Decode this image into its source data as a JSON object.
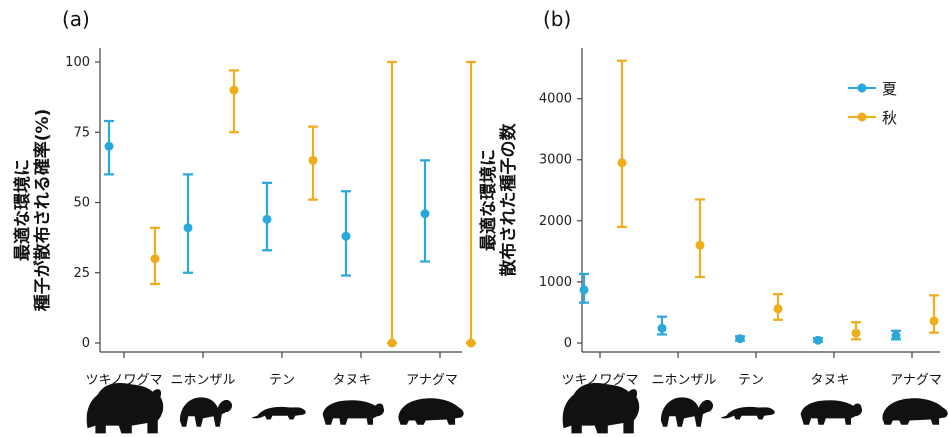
{
  "colors": {
    "summer": "#29a8de",
    "autumn": "#f0ad1a",
    "axis": "#444444",
    "silhouette": "#111111"
  },
  "legend": [
    {
      "key": "summer",
      "label": "夏"
    },
    {
      "key": "autumn",
      "label": "秋"
    }
  ],
  "animal_icons": [
    "bear-silhouette-icon",
    "monkey-silhouette-icon",
    "marten-silhouette-icon",
    "raccoon-dog-silhouette-icon",
    "badger-silhouette-icon"
  ],
  "chart_data": [
    {
      "type": "errorbar",
      "panel_label": "(a)",
      "ylabel": [
        "最適な環境に",
        "種子が散布される確率(%)"
      ],
      "yticks": [
        "0",
        "25",
        "50",
        "75",
        "100"
      ],
      "ylim": [
        0,
        100
      ],
      "categories": [
        "ツキノワグマ",
        "ニホンザル",
        "テン",
        "タヌキ",
        "アナグマ"
      ],
      "series": [
        {
          "name": "夏",
          "key": "summer",
          "values": [
            70,
            41,
            44,
            38,
            46
          ],
          "lower": [
            60,
            25,
            33,
            24,
            29
          ],
          "upper": [
            79,
            60,
            57,
            54,
            65
          ]
        },
        {
          "name": "秋",
          "key": "autumn",
          "values": [
            30,
            90,
            65,
            0,
            0
          ],
          "lower": [
            21,
            75,
            51,
            0,
            0
          ],
          "upper": [
            41,
            97,
            77,
            100,
            100
          ]
        }
      ]
    },
    {
      "type": "errorbar",
      "panel_label": "(b)",
      "ylabel": [
        "最適な環境に",
        "散布された種子の数"
      ],
      "yticks": [
        "0",
        "1000",
        "2000",
        "3000",
        "4000"
      ],
      "ylim": [
        0,
        4600
      ],
      "categories": [
        "ツキノワグマ",
        "ニホンザル",
        "テン",
        "タヌキ",
        "アナグマ"
      ],
      "series": [
        {
          "name": "夏",
          "key": "summer",
          "values": [
            870,
            240,
            70,
            45,
            120
          ],
          "lower": [
            660,
            140,
            40,
            20,
            60
          ],
          "upper": [
            1130,
            430,
            110,
            80,
            200
          ]
        },
        {
          "name": "秋",
          "key": "autumn",
          "values": [
            2950,
            1600,
            560,
            160,
            360
          ],
          "lower": [
            1900,
            1080,
            380,
            60,
            170
          ],
          "upper": [
            4620,
            2350,
            800,
            340,
            780
          ]
        }
      ]
    }
  ]
}
